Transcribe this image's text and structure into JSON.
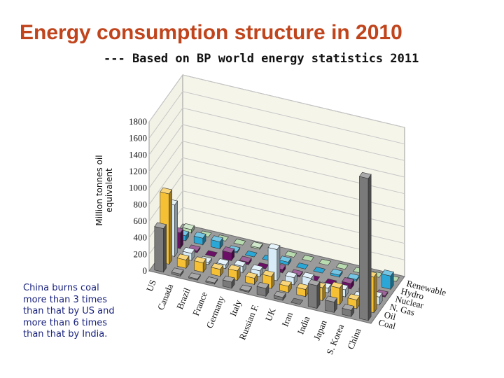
{
  "title": "Energy consumption structure in 2010",
  "subtitle": "--- Based on BP world energy statistics 2011",
  "note": [
    "China burns coal",
    "more than 3 times",
    "than that by US and",
    "more than 6 times",
    "than that by India."
  ],
  "chart_data": {
    "type": "bar",
    "projection": "3d",
    "ylabel": [
      "Million tonnes oil",
      "equivalent"
    ],
    "ylim": [
      0,
      1800
    ],
    "yticks": [
      0,
      200,
      400,
      600,
      800,
      1000,
      1200,
      1400,
      1600,
      1800
    ],
    "grid": true,
    "categories": [
      "US",
      "Canada",
      "Brazil",
      "France",
      "Germany",
      "Italy",
      "Russian F.",
      "UK",
      "Iran",
      "India",
      "Japan",
      "S. Korea",
      "China"
    ],
    "series_labels": [
      "Coal",
      "Oil",
      "N. Gas",
      "Nuclear",
      "Hydro",
      "Renewable"
    ],
    "series": [
      {
        "name": "Coal",
        "color": "#7a7a7a",
        "values": [
          525,
          25,
          15,
          15,
          75,
          15,
          95,
          35,
          5,
          275,
          125,
          75,
          1715
        ]
      },
      {
        "name": "Oil",
        "color": "#f5c033",
        "values": [
          850,
          100,
          115,
          85,
          115,
          75,
          145,
          75,
          85,
          155,
          200,
          105,
          430
        ]
      },
      {
        "name": "N. Gas",
        "color": "#d7ecf7",
        "values": [
          620,
          85,
          25,
          45,
          75,
          70,
          375,
          85,
          125,
          55,
          85,
          40,
          95
        ]
      },
      {
        "name": "Nuclear",
        "color": "#6b1066",
        "values": [
          190,
          20,
          5,
          95,
          30,
          5,
          40,
          15,
          5,
          5,
          65,
          35,
          15
        ]
      },
      {
        "name": "Hydro",
        "color": "#2aa7d6",
        "values": [
          60,
          80,
          85,
          15,
          5,
          10,
          35,
          5,
          5,
          25,
          20,
          5,
          160
        ]
      },
      {
        "name": "Renewable",
        "color": "#b8dbb0",
        "values": [
          40,
          5,
          10,
          5,
          15,
          5,
          5,
          5,
          5,
          5,
          5,
          5,
          10
        ]
      }
    ]
  }
}
